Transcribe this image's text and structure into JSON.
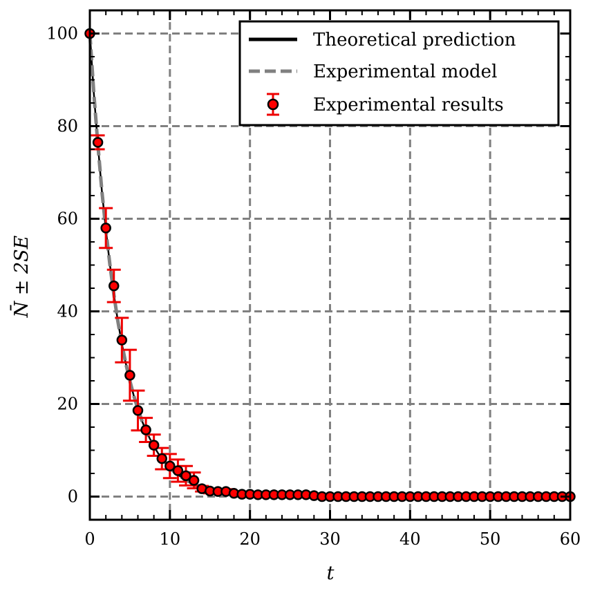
{
  "chart_data": {
    "type": "scatter",
    "xlabel": "t",
    "ylabel": "N̄ ± 2SE",
    "xlim": [
      0,
      60
    ],
    "ylim": [
      -5,
      105
    ],
    "grid": true,
    "legend_position": "top-right",
    "x_ticks": [
      "0",
      "10",
      "20",
      "30",
      "40",
      "50",
      "60"
    ],
    "y_ticks": [
      "0",
      "20",
      "40",
      "60",
      "80",
      "100"
    ],
    "series": [
      {
        "name": "Theoretical prediction",
        "kind": "line",
        "color": "#000000",
        "x": [
          0,
          0.5,
          1,
          1.5,
          2,
          2.5,
          3,
          3.5,
          4,
          4.5,
          5,
          5.5,
          6,
          6.5,
          7,
          7.5,
          8,
          8.5,
          9,
          9.5,
          10,
          11,
          12,
          13,
          14,
          15,
          16,
          18,
          20,
          22,
          25,
          30,
          35,
          40,
          45,
          50,
          55,
          60
        ],
        "y": [
          100,
          87,
          76,
          66,
          57.6,
          50.1,
          43.6,
          37.9,
          33,
          28.7,
          25,
          21.7,
          18.9,
          16.4,
          14.3,
          12.5,
          10.9,
          9.4,
          8.2,
          7.1,
          6.2,
          4.7,
          3.6,
          2.7,
          2,
          1.5,
          1.2,
          0.7,
          0.4,
          0.2,
          0.1,
          0,
          0,
          0,
          0,
          0,
          0,
          0
        ]
      },
      {
        "name": "Experimental model",
        "kind": "line",
        "dashed": true,
        "color": "#808080",
        "x": [
          0,
          0.5,
          1,
          1.5,
          2,
          2.5,
          3,
          3.5,
          4,
          4.5,
          5,
          5.5,
          6,
          6.5,
          7,
          7.5,
          8,
          8.5,
          9,
          9.5,
          10,
          11,
          12,
          13,
          14,
          15,
          16,
          18,
          20,
          22,
          25,
          30,
          35,
          40,
          45,
          50,
          55,
          60
        ],
        "y": [
          100,
          87,
          76,
          66,
          57.6,
          50.1,
          43.6,
          37.9,
          33,
          28.7,
          25,
          21.7,
          18.9,
          16.4,
          14.3,
          12.5,
          10.9,
          9.4,
          8.2,
          7.1,
          6.2,
          4.7,
          3.6,
          2.7,
          2,
          1.5,
          1.2,
          0.7,
          0.4,
          0.2,
          0.1,
          0,
          0,
          0,
          0,
          0,
          0,
          0
        ]
      },
      {
        "name": "Experimental results",
        "kind": "errorbar",
        "marker_color": "#ff0000",
        "error_color": "#ee0000",
        "x": [
          0,
          1,
          2,
          3,
          4,
          5,
          6,
          7,
          8,
          9,
          10,
          11,
          12,
          13,
          14,
          15,
          16,
          17,
          18,
          19,
          20,
          21,
          22,
          23,
          24,
          25,
          26,
          27,
          28,
          29,
          30,
          31,
          32,
          33,
          34,
          35,
          36,
          37,
          38,
          39,
          40,
          41,
          42,
          43,
          44,
          45,
          46,
          47,
          48,
          49,
          50,
          51,
          52,
          53,
          54,
          55,
          56,
          57,
          58,
          59,
          60
        ],
        "y": [
          100,
          76.5,
          58,
          45.5,
          33.8,
          26.2,
          18.6,
          14.4,
          11.1,
          8.2,
          6.6,
          5.6,
          4.5,
          3.5,
          1.7,
          1.2,
          1.1,
          1.1,
          0.7,
          0.5,
          0.5,
          0.4,
          0.4,
          0.4,
          0.4,
          0.4,
          0.4,
          0.4,
          0.2,
          0,
          0,
          0,
          0,
          0,
          0,
          0,
          0,
          0,
          0,
          0,
          0,
          0,
          0,
          0,
          0,
          0,
          0,
          0,
          0,
          0,
          0,
          0,
          0,
          0,
          0,
          0,
          0,
          0,
          0,
          0,
          0
        ],
        "err": [
          0,
          1.5,
          4.3,
          3.5,
          4.8,
          5.5,
          4.3,
          2.6,
          2.3,
          2.3,
          2.6,
          2.4,
          2.1,
          1.7,
          0.6,
          0.5,
          0.5,
          0.5,
          0.3,
          0.2,
          0.2,
          0.2,
          0.2,
          0.2,
          0.2,
          0.2,
          0.2,
          0.2,
          0.1,
          0,
          0,
          0,
          0,
          0,
          0,
          0,
          0,
          0,
          0,
          0,
          0,
          0,
          0,
          0,
          0,
          0,
          0,
          0,
          0,
          0,
          0,
          0,
          0,
          0,
          0,
          0,
          0,
          0,
          0,
          0,
          0
        ]
      }
    ]
  }
}
